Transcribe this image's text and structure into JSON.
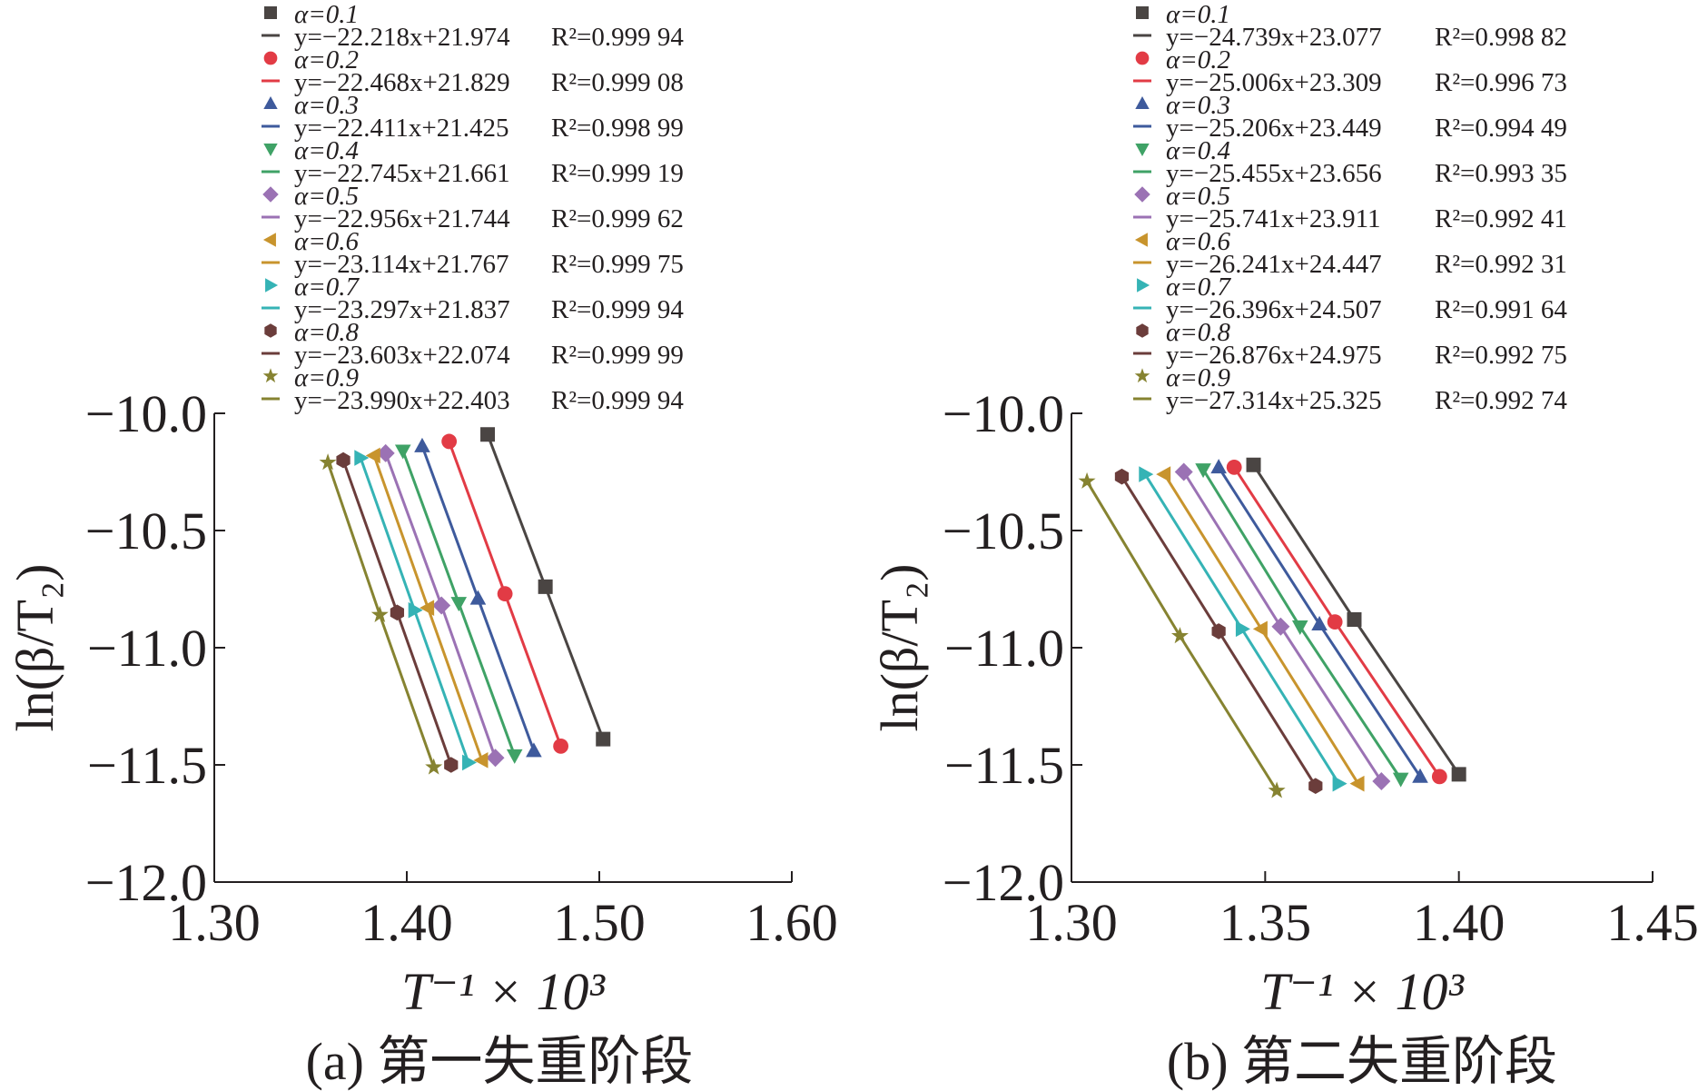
{
  "figure": {
    "panels": [
      "(a) 第一失重阶段",
      "(b) 第二失重阶段"
    ]
  },
  "legend_label_prefix": "α=",
  "series_colors": [
    "#4a4543",
    "#e23b45",
    "#3e5a9c",
    "#3fa266",
    "#9b72b4",
    "#c8942d",
    "#35b3b5",
    "#6b3d3b",
    "#868331"
  ],
  "series_markers": [
    "square",
    "circle",
    "triangle-up",
    "triangle-down",
    "diamond",
    "triangle-left",
    "triangle-right",
    "hexagon",
    "star"
  ],
  "chart_data": [
    {
      "type": "scatter",
      "title": "(a) 第一失重阶段",
      "xlabel": "T⁻¹ × 10³",
      "ylabel": "ln(β/T₂)",
      "xlim": [
        1.3,
        1.6
      ],
      "ylim": [
        -12.0,
        -10.0
      ],
      "xticks": [
        "1.30",
        "1.40",
        "1.50",
        "1.60"
      ],
      "yticks": [
        "−10.0",
        "−10.5",
        "−11.0",
        "−11.5",
        "−12.0"
      ],
      "grid": false,
      "legend_position": "top",
      "series": [
        {
          "name": "α=0.1",
          "x": [
            1.442,
            1.472,
            1.502
          ],
          "y": [
            -10.09,
            -10.74,
            -11.39
          ],
          "fit": "y=−22.218x+21.974",
          "r2": "R²=0.999 94"
        },
        {
          "name": "α=0.2",
          "x": [
            1.422,
            1.451,
            1.48
          ],
          "y": [
            -10.12,
            -10.77,
            -11.42
          ],
          "fit": "y=−22.468x+21.829",
          "r2": "R²=0.999 08"
        },
        {
          "name": "α=0.3",
          "x": [
            1.408,
            1.437,
            1.466
          ],
          "y": [
            -10.14,
            -10.79,
            -11.44
          ],
          "fit": "y=−22.411x+21.425",
          "r2": "R²=0.998 99"
        },
        {
          "name": "α=0.4",
          "x": [
            1.398,
            1.427,
            1.456
          ],
          "y": [
            -10.16,
            -10.81,
            -11.46
          ],
          "fit": "y=−22.745x+21.661",
          "r2": "R²=0.999 19"
        },
        {
          "name": "α=0.5",
          "x": [
            1.389,
            1.418,
            1.446
          ],
          "y": [
            -10.17,
            -10.82,
            -11.47
          ],
          "fit": "y=−22.956x+21.744",
          "r2": "R²=0.999 62"
        },
        {
          "name": "α=0.6",
          "x": [
            1.383,
            1.411,
            1.439
          ],
          "y": [
            -10.18,
            -10.83,
            -11.48
          ],
          "fit": "y=−23.114x+21.767",
          "r2": "R²=0.999 75"
        },
        {
          "name": "α=0.7",
          "x": [
            1.376,
            1.404,
            1.432
          ],
          "y": [
            -10.19,
            -10.84,
            -11.49
          ],
          "fit": "y=−23.297x+21.837",
          "r2": "R²=0.999 94"
        },
        {
          "name": "α=0.8",
          "x": [
            1.367,
            1.395,
            1.423
          ],
          "y": [
            -10.2,
            -10.85,
            -11.5
          ],
          "fit": "y=−23.603x+22.074",
          "r2": "R²=0.999 99"
        },
        {
          "name": "α=0.9",
          "x": [
            1.359,
            1.386,
            1.414
          ],
          "y": [
            -10.21,
            -10.86,
            -11.51
          ],
          "fit": "y=−23.990x+22.403",
          "r2": "R²=0.999 94"
        }
      ]
    },
    {
      "type": "scatter",
      "title": "(b) 第二失重阶段",
      "xlabel": "T⁻¹ × 10³",
      "ylabel": "ln(β/T₂)",
      "xlim": [
        1.3,
        1.45
      ],
      "ylim": [
        -12.0,
        -10.0
      ],
      "xticks": [
        "1.30",
        "1.35",
        "1.40",
        "1.45"
      ],
      "yticks": [
        "−10.0",
        "−10.5",
        "−11.0",
        "−11.5",
        "−12.0"
      ],
      "grid": false,
      "legend_position": "top",
      "series": [
        {
          "name": "α=0.1",
          "x": [
            1.347,
            1.373,
            1.4
          ],
          "y": [
            -10.22,
            -10.88,
            -11.54
          ],
          "fit": "y=−24.739x+23.077",
          "r2": "R²=0.998 82"
        },
        {
          "name": "α=0.2",
          "x": [
            1.342,
            1.368,
            1.395
          ],
          "y": [
            -10.23,
            -10.89,
            -11.55
          ],
          "fit": "y=−25.006x+23.309",
          "r2": "R²=0.996 73"
        },
        {
          "name": "α=0.3",
          "x": [
            1.338,
            1.364,
            1.39
          ],
          "y": [
            -10.23,
            -10.9,
            -11.55
          ],
          "fit": "y=−25.206x+23.449",
          "r2": "R²=0.994 49"
        },
        {
          "name": "α=0.4",
          "x": [
            1.334,
            1.359,
            1.385
          ],
          "y": [
            -10.24,
            -10.91,
            -11.56
          ],
          "fit": "y=−25.455x+23.656",
          "r2": "R²=0.993 35"
        },
        {
          "name": "α=0.5",
          "x": [
            1.329,
            1.354,
            1.38
          ],
          "y": [
            -10.25,
            -10.91,
            -11.57
          ],
          "fit": "y=−25.741x+23.911",
          "r2": "R²=0.992 41"
        },
        {
          "name": "α=0.6",
          "x": [
            1.324,
            1.349,
            1.374
          ],
          "y": [
            -10.26,
            -10.92,
            -11.58
          ],
          "fit": "y=−26.241x+24.447",
          "r2": "R²=0.992 31"
        },
        {
          "name": "α=0.7",
          "x": [
            1.319,
            1.344,
            1.369
          ],
          "y": [
            -10.26,
            -10.92,
            -11.58
          ],
          "fit": "y=−26.396x+24.507",
          "r2": "R²=0.991 64"
        },
        {
          "name": "α=0.8",
          "x": [
            1.313,
            1.338,
            1.363
          ],
          "y": [
            -10.27,
            -10.93,
            -11.59
          ],
          "fit": "y=−26.876x+24.975",
          "r2": "R²=0.992 75"
        },
        {
          "name": "α=0.9",
          "x": [
            1.304,
            1.328,
            1.353
          ],
          "y": [
            -10.29,
            -10.95,
            -11.61
          ],
          "fit": "y=−27.314x+25.325",
          "r2": "R²=0.992 74"
        }
      ]
    }
  ]
}
